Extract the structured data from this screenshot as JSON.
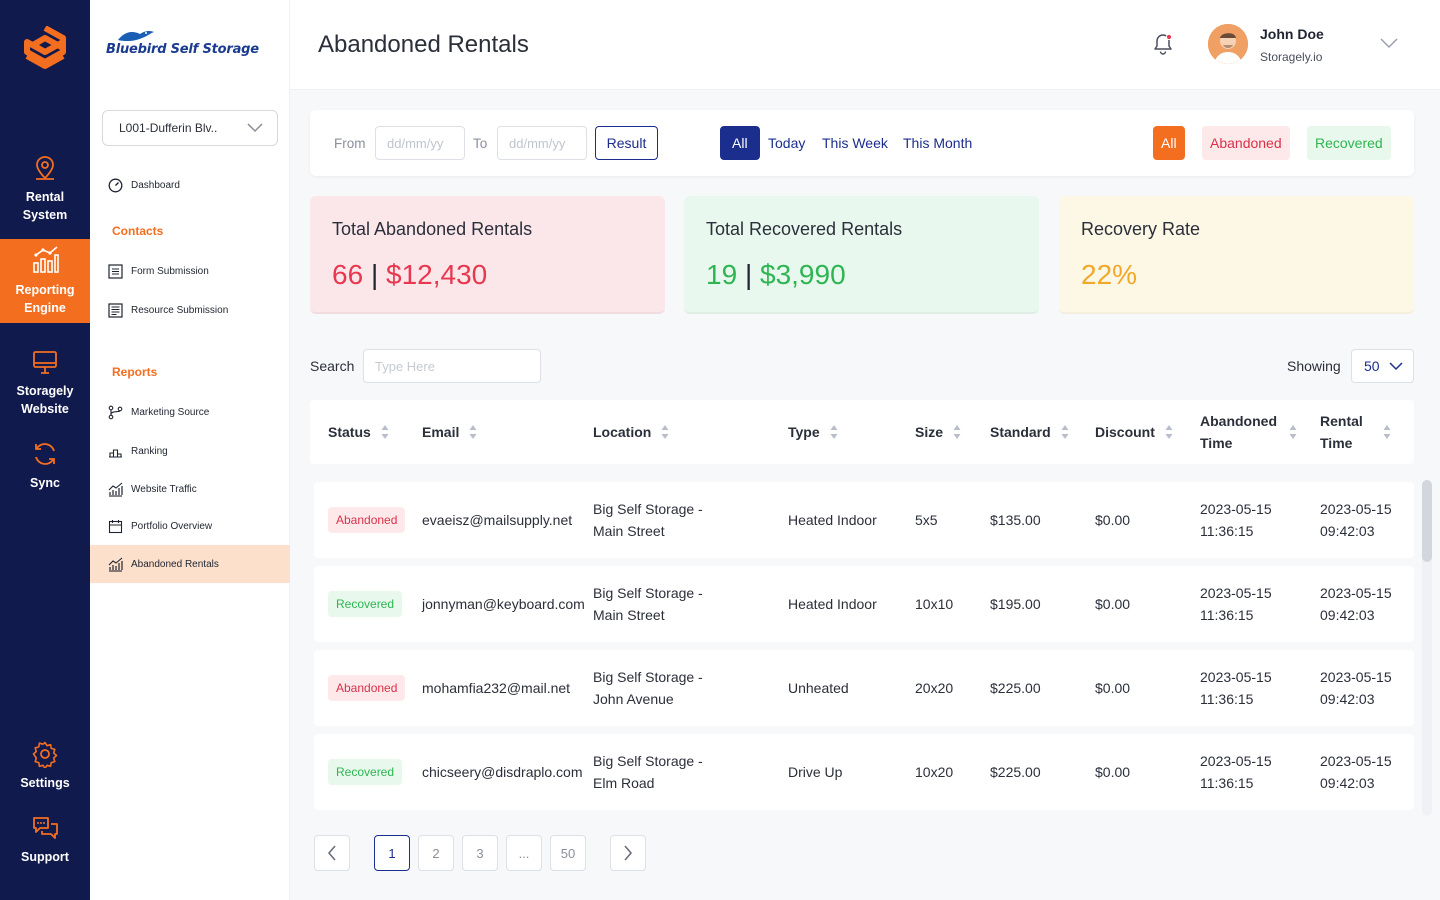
{
  "rail": {
    "items": [
      {
        "label1": "Rental",
        "label2": "System"
      },
      {
        "label1": "Reporting",
        "label2": "Engine"
      },
      {
        "label1": "Storagely",
        "label2": "Website"
      },
      {
        "label1": "Sync",
        "label2": ""
      },
      {
        "label1": "Settings",
        "label2": ""
      },
      {
        "label1": "Support",
        "label2": ""
      }
    ],
    "active_color": "#f46e20",
    "bg_color": "#111a4d"
  },
  "sidebar": {
    "brand": "Bluebird Self Storage",
    "location": "L001-Dufferin Blv..",
    "dashboard": "Dashboard",
    "contacts_heading": "Contacts",
    "contacts": [
      "Form Submission",
      "Resource Submission"
    ],
    "reports_heading": "Reports",
    "reports": [
      "Marketing Source",
      "Ranking",
      "Website Traffic",
      "Portfolio Overview",
      "Abandoned Rentals"
    ]
  },
  "header": {
    "title": "Abandoned Rentals",
    "user_name": "John Doe",
    "user_org": "Storagely.io"
  },
  "filter": {
    "from_label": "From",
    "to_label": "To",
    "from_placeholder": "dd/mm/yy",
    "to_placeholder": "dd/mm/yy",
    "result_label": "Result",
    "ranges": [
      "All",
      "Today",
      "This Week",
      "This Month"
    ],
    "statuses": [
      "All",
      "Abandoned",
      "Recovered"
    ]
  },
  "cards": {
    "abandoned": {
      "title": "Total Abandoned Rentals",
      "count": "66",
      "amount": "$12,430"
    },
    "recovered": {
      "title": "Total Recovered Rentals",
      "count": "19",
      "amount": "$3,990"
    },
    "rate": {
      "title": "Recovery Rate",
      "value": "22%"
    }
  },
  "search": {
    "label": "Search",
    "placeholder": "Type Here",
    "showing_label": "Showing",
    "showing_value": "50"
  },
  "table": {
    "headers": {
      "status": "Status",
      "email": "Email",
      "location": "Location",
      "type": "Type",
      "size": "Size",
      "standard": "Standard",
      "discount": "Discount",
      "abandoned_time_1": "Abandoned",
      "abandoned_time_2": "Time",
      "rental_time_1": "Rental",
      "rental_time_2": "Time"
    },
    "rows": [
      {
        "status": "Abandoned",
        "email": "evaeisz@mailsupply.net",
        "loc1": "Big Self Storage -",
        "loc2": "Main Street",
        "type": "Heated Indoor",
        "size": "5x5",
        "standard": "$135.00",
        "discount": "$0.00",
        "ab_date": "2023-05-15",
        "ab_time": "11:36:15",
        "rt_date": "2023-05-15",
        "rt_time": "09:42:03"
      },
      {
        "status": "Recovered",
        "email": "jonnyman@keyboard.com",
        "loc1": "Big Self Storage -",
        "loc2": "Main Street",
        "type": "Heated Indoor",
        "size": "10x10",
        "standard": "$195.00",
        "discount": "$0.00",
        "ab_date": "2023-05-15",
        "ab_time": "11:36:15",
        "rt_date": "2023-05-15",
        "rt_time": "09:42:03"
      },
      {
        "status": "Abandoned",
        "email": "mohamfia232@mail.net",
        "loc1": "Big Self Storage -",
        "loc2": "John Avenue",
        "type": "Unheated",
        "size": "20x20",
        "standard": "$225.00",
        "discount": "$0.00",
        "ab_date": "2023-05-15",
        "ab_time": "11:36:15",
        "rt_date": "2023-05-15",
        "rt_time": "09:42:03"
      },
      {
        "status": "Recovered",
        "email": "chicseery@disdraplo.com",
        "loc1": "Big Self Storage -",
        "loc2": "Elm Road",
        "type": "Drive Up",
        "size": "10x20",
        "standard": "$225.00",
        "discount": "$0.00",
        "ab_date": "2023-05-15",
        "ab_time": "11:36:15",
        "rt_date": "2023-05-15",
        "rt_time": "09:42:03"
      }
    ]
  },
  "pagination": {
    "pages": [
      "1",
      "2",
      "3",
      "...",
      "50"
    ],
    "current": "1"
  }
}
